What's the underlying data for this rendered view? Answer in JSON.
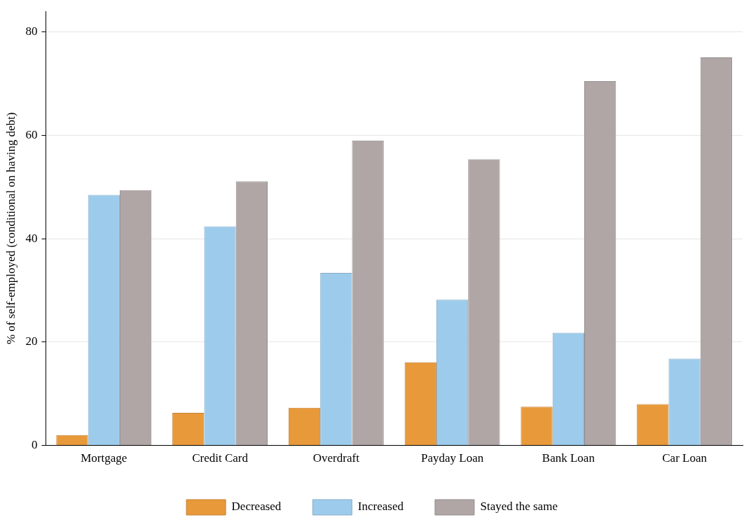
{
  "chart_data": {
    "type": "bar",
    "ylabel": "% of self-employed (conditional on having debt)",
    "categories": [
      "Mortgage",
      "Credit Card",
      "Overdraft",
      "Payday Loan",
      "Bank Loan",
      "Car Loan"
    ],
    "series": [
      {
        "name": "Decreased",
        "color": "#e8993a",
        "values": [
          2.0,
          6.3,
          7.3,
          16.1,
          7.5,
          8.0
        ]
      },
      {
        "name": "Increased",
        "color": "#9dcbeb",
        "values": [
          48.5,
          42.4,
          33.4,
          28.2,
          21.8,
          16.8
        ]
      },
      {
        "name": "Stayed the same",
        "color": "#b0a6a6",
        "values": [
          49.4,
          51.1,
          59.0,
          55.4,
          70.5,
          75.1
        ]
      }
    ],
    "ylim": [
      0,
      84
    ],
    "yticks": [
      0,
      20,
      40,
      60,
      80
    ],
    "grid": "y",
    "legend": "bottom"
  }
}
